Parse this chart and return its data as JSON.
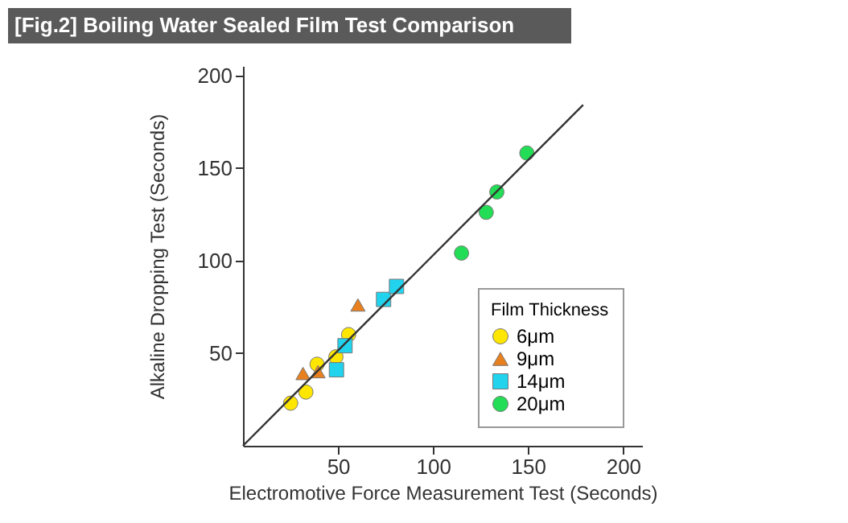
{
  "chart_data": {
    "type": "scatter",
    "title": "[Fig.2] Boiling Water Sealed Film Test Comparison",
    "xlabel": "Electromotive Force Measurement Test (Seconds)",
    "ylabel": "Alkaline Dropping Test (Seconds)",
    "legend_title": "Film Thickness",
    "legend": "bottom right",
    "grid": false,
    "xlim": [
      0,
      210
    ],
    "ylim": [
      0,
      205
    ],
    "xticks": [
      50,
      100,
      150,
      200
    ],
    "yticks": [
      50,
      100,
      150,
      200
    ],
    "series": [
      {
        "name": "6μm",
        "color": "#ffe600",
        "marker": "circle",
        "x": [
          25.1,
          33.1,
          39.0,
          48.9,
          55.6
        ],
        "values": [
          23,
          29,
          44,
          48,
          60
        ]
      },
      {
        "name": "9μm",
        "color": "#e8801e",
        "marker": "triangle",
        "x": [
          31.6,
          39.5,
          60.5
        ],
        "values": [
          39,
          40,
          76
        ]
      },
      {
        "name": "14μm",
        "color": "#22d3ee",
        "marker": "square",
        "x": [
          49.2,
          53.7,
          74.0,
          80.8
        ],
        "values": [
          41,
          54,
          79,
          86
        ]
      },
      {
        "name": "20μm",
        "color": "#22dd55",
        "marker": "circle",
        "x": [
          115,
          128,
          133.6,
          149.4
        ],
        "values": [
          104,
          126,
          137,
          158
        ]
      },
      {
        "type": "line",
        "color": "#333333",
        "x": [
          0,
          179
        ],
        "values": [
          0,
          184
        ]
      }
    ]
  }
}
